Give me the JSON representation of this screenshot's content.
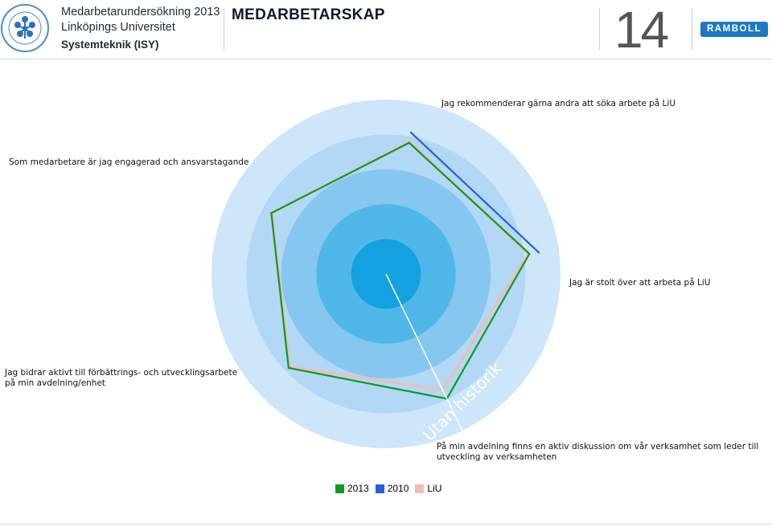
{
  "header": {
    "survey_title": "Medarbetarundersökning 2013",
    "university": "Linköpings Universitet",
    "department": "Systemteknik (ISY)",
    "page_title": "MEDARBETARSKAP",
    "page_number": "14",
    "partner_logo": "RAMBOLL",
    "colors": {
      "text": "#1e2a33",
      "partner": "#1d79c0"
    }
  },
  "chart_data": {
    "type": "radar",
    "axes": [
      {
        "label_lines": [
          "Jag rekommenderar gärna andra att söka arbete på LiU"
        ]
      },
      {
        "label_lines": [
          "Jag är stolt över att arbeta på LiU"
        ]
      },
      {
        "label_lines": [
          "På min avdelning finns en aktiv diskussion om vår verksamhet som leder till",
          "utveckling av verksamheten"
        ]
      },
      {
        "label_lines": [
          "Jag bidrar aktivt till förbättrings- och utvecklingsarbete",
          "på min avdelning/enhet"
        ]
      },
      {
        "label_lines": [
          "Som medarbetare är jag engagerad och ansvarstagande"
        ]
      }
    ],
    "scale": {
      "min": 0,
      "max": 5,
      "rings": 5,
      "ring_colors": [
        "#cde6f9",
        "#b2d8f6",
        "#85c7ef",
        "#4fb8e9",
        "#14a1df"
      ]
    },
    "series": [
      {
        "name": "2013",
        "color": "#0f9a21",
        "values": [
          3.82,
          4.15,
          3.98,
          3.88,
          3.72
        ]
      },
      {
        "name": "2010",
        "color": "#2461e0",
        "values": [
          4.12,
          4.42,
          null,
          null,
          null
        ]
      },
      {
        "name": "LiU",
        "color": "#f1bcb6",
        "values": [
          3.86,
          4.11,
          3.7,
          3.83,
          3.7
        ]
      }
    ],
    "reference_line": {
      "label": "Utan historik",
      "color": "#ffffff",
      "axis_index": 2
    }
  },
  "legend": [
    {
      "label": "2013",
      "color": "#0f9a21"
    },
    {
      "label": "2010",
      "color": "#2461e0"
    },
    {
      "label": "LiU",
      "color": "#f1bcb6"
    }
  ]
}
